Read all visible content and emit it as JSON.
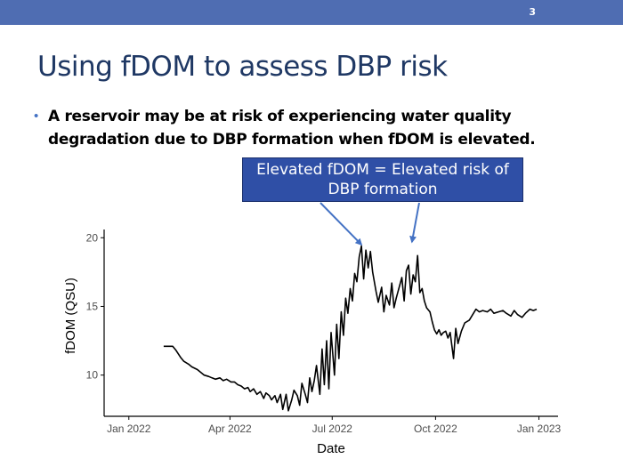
{
  "slide": {
    "number": "3",
    "title": "Using fDOM to assess DBP risk",
    "bullet": "A reservoir may be at risk of experiencing water quality degradation due to DBP formation when fDOM is elevated.",
    "callout": "Elevated fDOM = Elevated risk of DBP formation"
  },
  "colors": {
    "top_bar": "#4f6db2",
    "title": "#1f3864",
    "callout_bg": "#2f4fa6",
    "arrow": "#4472c4",
    "line": "#000000"
  },
  "chart_data": {
    "type": "line",
    "title": "",
    "xlabel": "Date",
    "ylabel": "fDOM (QSU)",
    "x_axis_type": "date",
    "xlim": [
      "2021-12-10",
      "2023-01-18"
    ],
    "ylim": [
      7.0,
      20.6
    ],
    "xticks": [
      "2022-01-01",
      "2022-04-01",
      "2022-07-01",
      "2022-10-01",
      "2023-01-01"
    ],
    "xtick_labels": [
      "Jan 2022",
      "Apr 2022",
      "Jul 2022",
      "Oct 2022",
      "Jan 2023"
    ],
    "yticks": [
      10,
      15,
      20
    ],
    "ytick_labels": [
      "10",
      "15",
      "20"
    ],
    "grid": false,
    "annotations": [
      {
        "date": "2022-07-27",
        "value": 19.5
      },
      {
        "date": "2022-09-10",
        "value": 19.7
      }
    ],
    "series": [
      {
        "x": [
          "2022-02-01",
          "2022-02-06",
          "2022-02-09",
          "2022-02-12",
          "2022-02-16",
          "2022-02-19",
          "2022-02-23",
          "2022-02-26",
          "2022-03-03",
          "2022-03-06",
          "2022-03-09",
          "2022-03-13",
          "2022-03-16",
          "2022-03-19",
          "2022-03-23",
          "2022-03-26",
          "2022-03-29",
          "2022-04-02",
          "2022-04-05",
          "2022-04-08",
          "2022-04-11",
          "2022-04-14",
          "2022-04-17",
          "2022-04-19",
          "2022-04-22",
          "2022-04-25",
          "2022-04-28",
          "2022-05-01",
          "2022-05-03",
          "2022-05-06",
          "2022-05-08",
          "2022-05-11",
          "2022-05-13",
          "2022-05-16",
          "2022-05-18",
          "2022-05-21",
          "2022-05-23",
          "2022-05-26",
          "2022-05-28",
          "2022-05-31",
          "2022-06-02",
          "2022-06-04",
          "2022-06-07",
          "2022-06-09",
          "2022-06-11",
          "2022-06-13",
          "2022-06-15",
          "2022-06-17",
          "2022-06-20",
          "2022-06-22",
          "2022-06-24",
          "2022-06-26",
          "2022-06-28",
          "2022-06-30",
          "2022-07-03",
          "2022-07-05",
          "2022-07-07",
          "2022-07-09",
          "2022-07-11",
          "2022-07-13",
          "2022-07-15",
          "2022-07-17",
          "2022-07-19",
          "2022-07-21",
          "2022-07-23",
          "2022-07-25",
          "2022-07-27",
          "2022-07-29",
          "2022-07-31",
          "2022-08-02",
          "2022-08-04",
          "2022-08-06",
          "2022-08-09",
          "2022-08-11",
          "2022-08-14",
          "2022-08-16",
          "2022-08-18",
          "2022-08-21",
          "2022-08-23",
          "2022-08-25",
          "2022-08-27",
          "2022-08-29",
          "2022-09-01",
          "2022-09-03",
          "2022-09-05",
          "2022-09-07",
          "2022-09-09",
          "2022-09-11",
          "2022-09-13",
          "2022-09-15",
          "2022-09-17",
          "2022-09-19",
          "2022-09-21",
          "2022-09-23",
          "2022-09-26",
          "2022-09-28",
          "2022-09-30",
          "2022-10-02",
          "2022-10-04",
          "2022-10-06",
          "2022-10-08",
          "2022-10-10",
          "2022-10-12",
          "2022-10-14",
          "2022-10-17",
          "2022-10-19",
          "2022-10-21",
          "2022-10-24",
          "2022-10-27",
          "2022-10-31",
          "2022-11-03",
          "2022-11-06",
          "2022-11-09",
          "2022-11-12",
          "2022-11-16",
          "2022-11-19",
          "2022-11-22",
          "2022-11-26",
          "2022-11-30",
          "2022-12-03",
          "2022-12-07",
          "2022-12-10",
          "2022-12-13",
          "2022-12-17",
          "2022-12-20",
          "2022-12-24",
          "2022-12-27",
          "2022-12-30"
        ],
        "values": [
          12.1,
          12.1,
          12.1,
          11.8,
          11.3,
          11.0,
          10.8,
          10.6,
          10.4,
          10.2,
          10.0,
          9.9,
          9.8,
          9.7,
          9.8,
          9.6,
          9.7,
          9.5,
          9.5,
          9.3,
          9.2,
          9.0,
          9.1,
          8.8,
          9.0,
          8.6,
          8.8,
          8.3,
          8.7,
          8.5,
          8.2,
          8.5,
          8.0,
          8.6,
          7.5,
          8.6,
          7.4,
          8.2,
          8.9,
          8.5,
          7.8,
          9.4,
          8.6,
          8.0,
          9.8,
          8.8,
          9.6,
          10.7,
          8.6,
          11.9,
          9.3,
          12.5,
          9.0,
          13.1,
          10.0,
          13.7,
          11.2,
          14.6,
          12.9,
          15.6,
          14.5,
          16.3,
          15.4,
          17.4,
          16.8,
          18.6,
          19.4,
          17.0,
          19.1,
          17.8,
          19.0,
          17.5,
          16.1,
          15.3,
          16.4,
          14.6,
          15.8,
          15.1,
          16.7,
          14.9,
          15.6,
          16.2,
          17.1,
          15.4,
          17.6,
          18.0,
          15.9,
          17.3,
          16.8,
          18.7,
          16.0,
          16.3,
          15.4,
          14.9,
          14.6,
          13.9,
          13.3,
          13.0,
          13.3,
          12.9,
          13.1,
          13.2,
          12.7,
          13.1,
          11.2,
          13.4,
          12.3,
          13.2,
          13.8,
          14.0,
          14.4,
          14.8,
          14.6,
          14.7,
          14.6,
          14.8,
          14.5,
          14.6,
          14.7,
          14.5,
          14.3,
          14.7,
          14.4,
          14.2,
          14.5,
          14.8,
          14.7,
          14.8
        ]
      }
    ]
  }
}
